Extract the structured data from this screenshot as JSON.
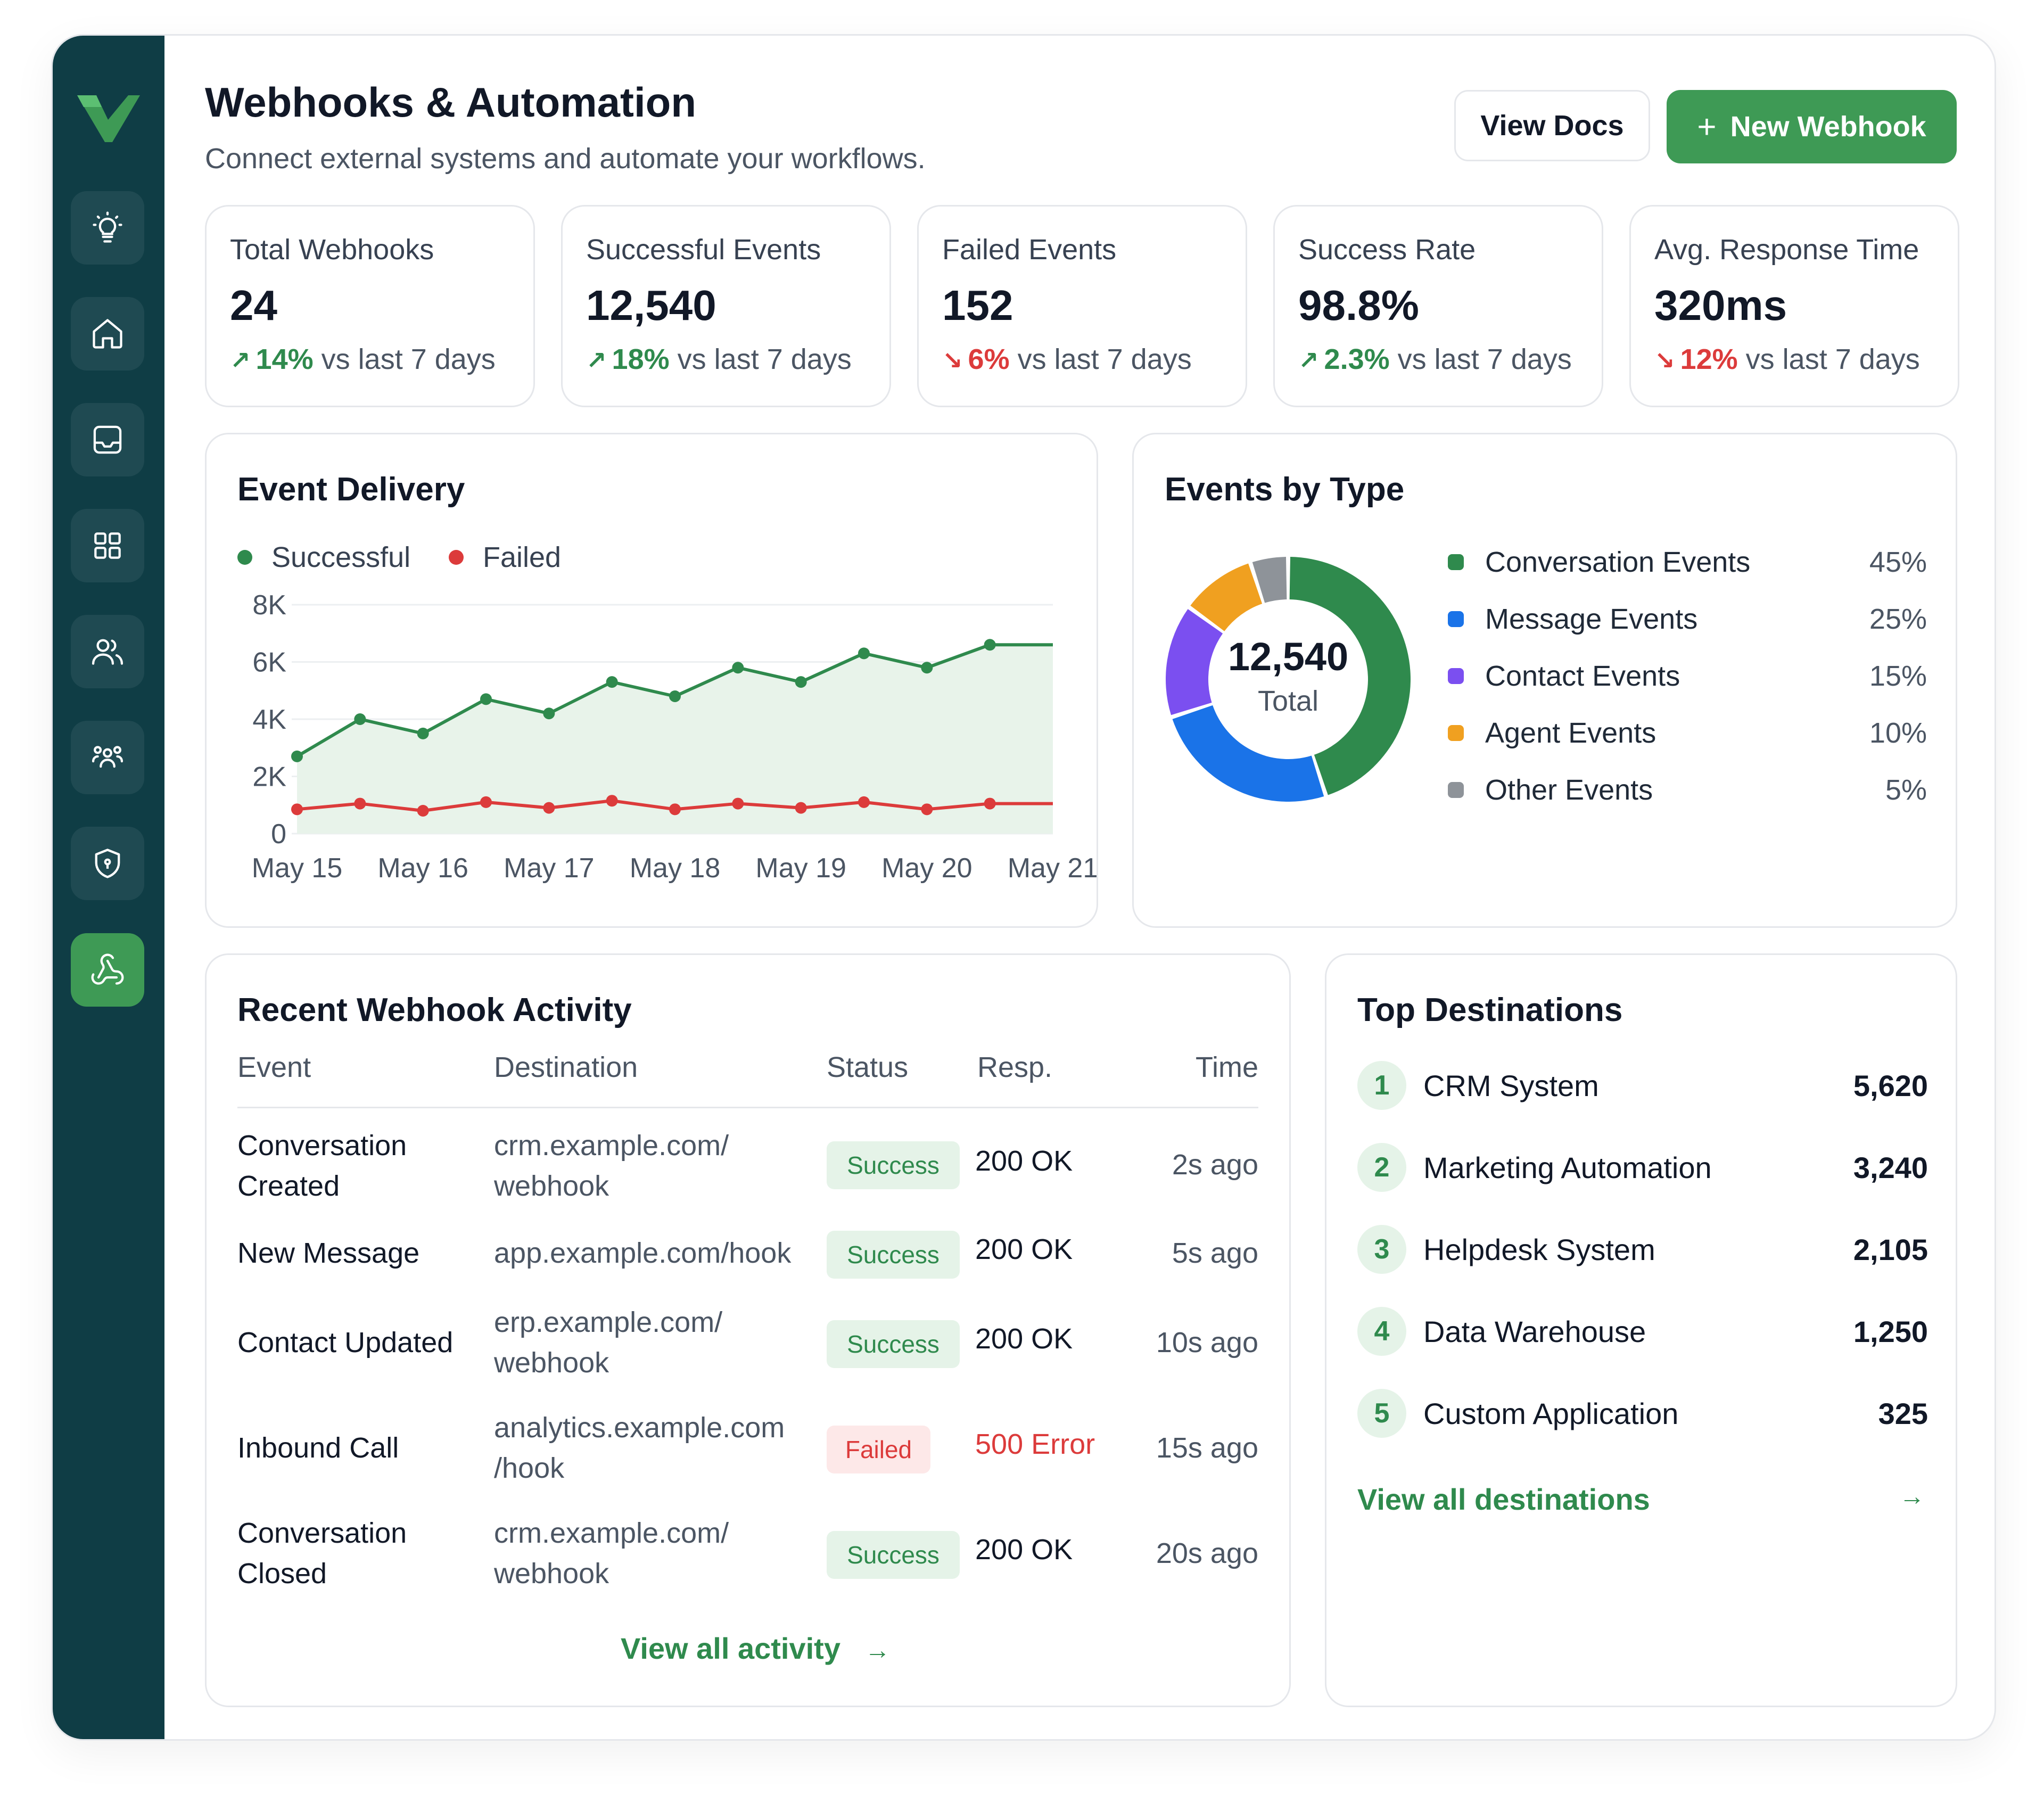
{
  "header": {
    "title": "Webhooks & Automation",
    "subtitle": "Connect external systems and automate your workflows.",
    "view_docs_label": "View Docs",
    "new_webhook_label": "New Webhook"
  },
  "sidebar": {
    "items": [
      {
        "name": "lightbulb-icon"
      },
      {
        "name": "home-icon"
      },
      {
        "name": "inbox-icon"
      },
      {
        "name": "grid-icon"
      },
      {
        "name": "users-icon"
      },
      {
        "name": "team-icon"
      },
      {
        "name": "shield-icon"
      },
      {
        "name": "webhook-icon",
        "active": true
      }
    ]
  },
  "stats": [
    {
      "label": "Total Webhooks",
      "value": "24",
      "trend": "14%",
      "dir": "up",
      "suffix": "vs last 7 days"
    },
    {
      "label": "Successful Events",
      "value": "12,540",
      "trend": "18%",
      "dir": "up",
      "suffix": "vs last 7 days"
    },
    {
      "label": "Failed Events",
      "value": "152",
      "trend": "6%",
      "dir": "down",
      "suffix": "vs last 7 days"
    },
    {
      "label": "Success Rate",
      "value": "98.8%",
      "trend": "2.3%",
      "dir": "up",
      "suffix": "vs last 7 days"
    },
    {
      "label": "Avg. Response Time",
      "value": "320ms",
      "trend": "12%",
      "dir": "down",
      "suffix": "vs last 7 days"
    }
  ],
  "delivery": {
    "title": "Event Delivery",
    "legend": [
      {
        "name": "Successful",
        "color": "#2f8a4d"
      },
      {
        "name": "Failed",
        "color": "#dc3b3b"
      }
    ]
  },
  "events_by_type": {
    "title": "Events by Type",
    "center_value": "12,540",
    "center_label": "Total",
    "items": [
      {
        "label": "Conversation Events",
        "pct": "45%",
        "value": 45,
        "color": "#2f8a4d"
      },
      {
        "label": "Message Events",
        "pct": "25%",
        "value": 25,
        "color": "#1a73e8"
      },
      {
        "label": "Contact Events",
        "pct": "15%",
        "value": 15,
        "color": "#7b4ff0"
      },
      {
        "label": "Agent Events",
        "pct": "10%",
        "value": 10,
        "color": "#f0a020"
      },
      {
        "label": "Other Events",
        "pct": "5%",
        "value": 5,
        "color": "#8e9399"
      }
    ]
  },
  "activity": {
    "title": "Recent Webhook Activity",
    "columns": [
      "Event",
      "Destination",
      "Status",
      "Resp.",
      "Time"
    ],
    "rows": [
      {
        "event1": "Conversation",
        "event2": "Created",
        "dest1": "crm.example.com/",
        "dest2": "webhook",
        "status": "Success",
        "resp": "200 OK",
        "time": "2s ago"
      },
      {
        "event1": "New Message",
        "event2": "",
        "dest1": "app.example.com/hook",
        "dest2": "",
        "status": "Success",
        "resp": "200 OK",
        "time": "5s ago"
      },
      {
        "event1": "Contact Updated",
        "event2": "",
        "dest1": "erp.example.com/",
        "dest2": "webhook",
        "status": "Success",
        "resp": "200 OK",
        "time": "10s ago"
      },
      {
        "event1": "Inbound Call",
        "event2": "",
        "dest1": "analytics.example.com",
        "dest2": "/hook",
        "status": "Failed",
        "resp": "500 Error",
        "time": "15s ago"
      },
      {
        "event1": "Conversation",
        "event2": "Closed",
        "dest1": "crm.example.com/",
        "dest2": "webhook",
        "status": "Success",
        "resp": "200 OK",
        "time": "20s ago"
      }
    ],
    "view_all_label": "View all activity"
  },
  "destinations": {
    "title": "Top Destinations",
    "items": [
      {
        "rank": "1",
        "name": "CRM System",
        "count": "5,620"
      },
      {
        "rank": "2",
        "name": "Marketing Automation",
        "count": "3,240"
      },
      {
        "rank": "3",
        "name": "Helpdesk System",
        "count": "2,105"
      },
      {
        "rank": "4",
        "name": "Data Warehouse",
        "count": "1,250"
      },
      {
        "rank": "5",
        "name": "Custom Application",
        "count": "325"
      }
    ],
    "view_all_label": "View all destinations"
  },
  "chart_data": {
    "type": "line",
    "title": "Event Delivery",
    "categories": [
      "May 15",
      "May 16",
      "May 17",
      "May 18",
      "May 19",
      "May 20",
      "May 21"
    ],
    "y_ticks": [
      "0",
      "2K",
      "4K",
      "6K",
      "8K"
    ],
    "ylim": [
      0,
      8000
    ],
    "grid": true,
    "legend_position": "top-left",
    "x": [
      0,
      0.5,
      1,
      1.5,
      2,
      2.5,
      3,
      3.5,
      4,
      4.5,
      5,
      5.5,
      6
    ],
    "series": [
      {
        "name": "Successful",
        "color": "#2f8a4d",
        "area": true,
        "values": [
          2700,
          4000,
          3500,
          4700,
          4200,
          5300,
          4800,
          5800,
          5300,
          6300,
          5800,
          6600,
          6600
        ],
        "markers": [
          true,
          true,
          true,
          true,
          true,
          true,
          true,
          true,
          true,
          true,
          true,
          true,
          false
        ]
      },
      {
        "name": "Failed",
        "color": "#dc3b3b",
        "area": false,
        "values": [
          850,
          1050,
          800,
          1100,
          900,
          1150,
          850,
          1050,
          900,
          1100,
          850,
          1050,
          1050
        ],
        "markers": [
          true,
          true,
          true,
          true,
          true,
          true,
          true,
          true,
          true,
          true,
          true,
          true,
          false
        ]
      }
    ]
  }
}
